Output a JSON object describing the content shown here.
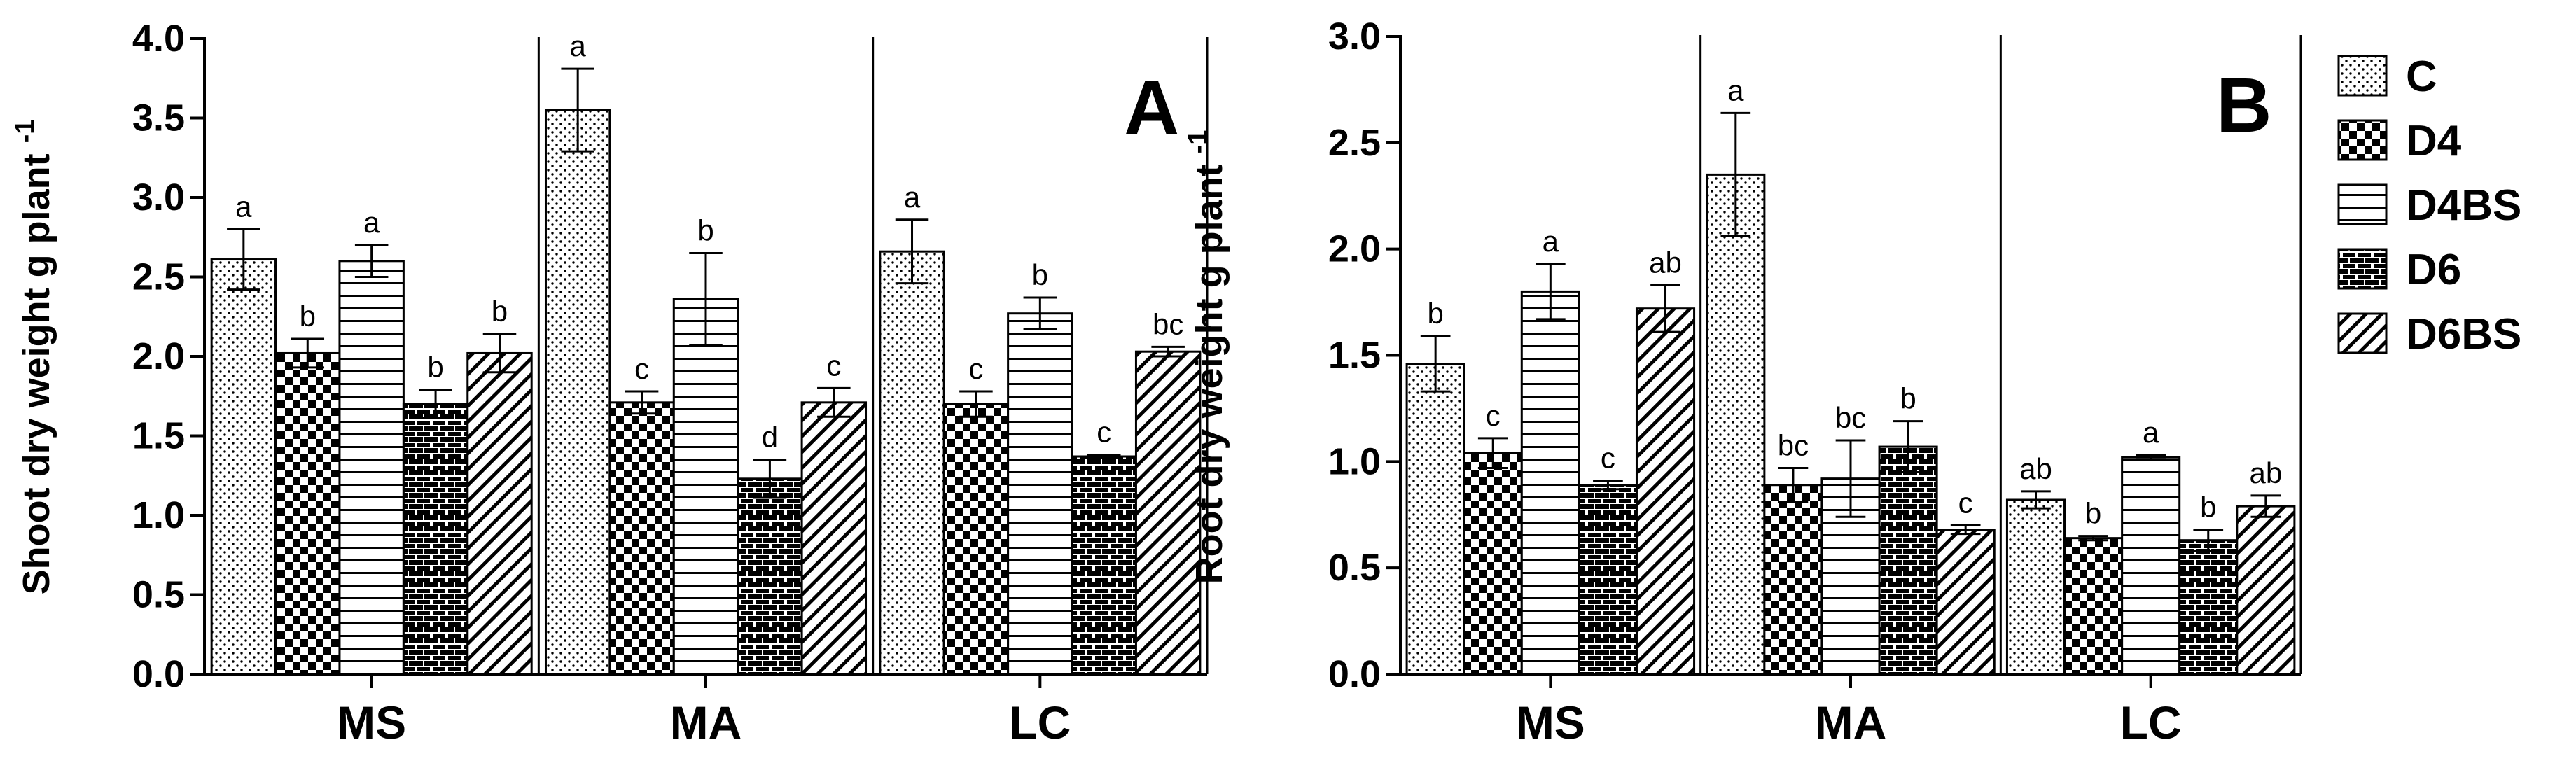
{
  "colors": {
    "ink": "#000000",
    "paper": "#ffffff"
  },
  "legend": {
    "items": [
      {
        "label": "C",
        "pattern": "dots"
      },
      {
        "label": "D4",
        "pattern": "checker"
      },
      {
        "label": "D4BS",
        "pattern": "hlines"
      },
      {
        "label": "D6",
        "pattern": "brick"
      },
      {
        "label": "D6BS",
        "pattern": "diag"
      }
    ]
  },
  "chart_data": [
    {
      "type": "bar",
      "panel_label": "A",
      "ylabel": "Shoot dry weight g plant",
      "ylabel_sup": "-1",
      "ylim": [
        0,
        4.0
      ],
      "yticks": [
        "0.0",
        "0.5",
        "1.0",
        "1.5",
        "2.0",
        "2.5",
        "3.0",
        "3.5",
        "4.0"
      ],
      "categories": [
        "MS",
        "MA",
        "LC"
      ],
      "series": [
        {
          "name": "C",
          "values": [
            2.61,
            3.55,
            2.66
          ],
          "errors": [
            0.19,
            0.26,
            0.2
          ],
          "letters": [
            "a",
            "a",
            "a"
          ]
        },
        {
          "name": "D4",
          "values": [
            2.02,
            1.71,
            1.7
          ],
          "errors": [
            0.09,
            0.07,
            0.08
          ],
          "letters": [
            "b",
            "c",
            "c"
          ]
        },
        {
          "name": "D4BS",
          "values": [
            2.6,
            2.36,
            2.27
          ],
          "errors": [
            0.1,
            0.29,
            0.1
          ],
          "letters": [
            "a",
            "b",
            "b"
          ]
        },
        {
          "name": "D6",
          "values": [
            1.7,
            1.23,
            1.37
          ],
          "errors": [
            0.09,
            0.12,
            0.01
          ],
          "letters": [
            "b",
            "d",
            "c"
          ]
        },
        {
          "name": "D6BS",
          "values": [
            2.02,
            1.71,
            2.03
          ],
          "errors": [
            0.12,
            0.09,
            0.03
          ],
          "letters": [
            "b",
            "c",
            "bc"
          ]
        }
      ]
    },
    {
      "type": "bar",
      "panel_label": "B",
      "ylabel": "Root dry weight g plant",
      "ylabel_sup": "-1",
      "ylim": [
        0,
        3.0
      ],
      "yticks": [
        "0.0",
        "0.5",
        "1.0",
        "1.5",
        "2.0",
        "2.5",
        "3.0"
      ],
      "categories": [
        "MS",
        "MA",
        "LC"
      ],
      "series": [
        {
          "name": "C",
          "values": [
            1.46,
            2.35,
            0.82
          ],
          "errors": [
            0.13,
            0.29,
            0.04
          ],
          "letters": [
            "b",
            "a",
            "ab"
          ]
        },
        {
          "name": "D4",
          "values": [
            1.04,
            0.89,
            0.64
          ],
          "errors": [
            0.07,
            0.08,
            0.01
          ],
          "letters": [
            "c",
            "bc",
            "b"
          ]
        },
        {
          "name": "D4BS",
          "values": [
            1.8,
            0.92,
            1.02
          ],
          "errors": [
            0.13,
            0.18,
            0.01
          ],
          "letters": [
            "a",
            "bc",
            "a"
          ]
        },
        {
          "name": "D6",
          "values": [
            0.89,
            1.07,
            0.63
          ],
          "errors": [
            0.02,
            0.12,
            0.05
          ],
          "letters": [
            "c",
            "b",
            "b"
          ]
        },
        {
          "name": "D6BS",
          "values": [
            1.72,
            0.68,
            0.79
          ],
          "errors": [
            0.11,
            0.02,
            0.05
          ],
          "letters": [
            "ab",
            "c",
            "ab"
          ]
        }
      ]
    }
  ]
}
